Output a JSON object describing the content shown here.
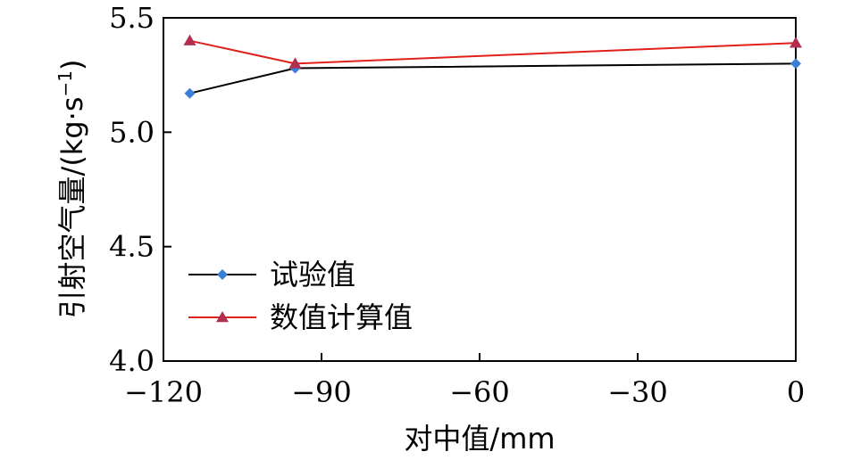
{
  "chart_data": {
    "type": "line",
    "xlabel": "对中值/mm",
    "ylabel_main": "引射空气量/(kg·s",
    "ylabel_sup": "−1",
    "ylabel_close": ")",
    "xlim": [
      -120,
      0
    ],
    "ylim": [
      4.0,
      5.5
    ],
    "xticks": [
      -120,
      -90,
      -60,
      -30,
      0
    ],
    "xtick_labels": [
      "−120",
      "−90",
      "−60",
      "−30",
      "0"
    ],
    "yticks": [
      4.0,
      4.5,
      5.0,
      5.5
    ],
    "ytick_labels": [
      "4.0",
      "4.5",
      "5.0",
      "5.5"
    ],
    "grid": false,
    "legend_position": "lower-left",
    "series": [
      {
        "name": "试验值",
        "color": "#000000",
        "marker_color": "#3a7fd5",
        "marker": "diamond",
        "x": [
          -115,
          -95,
          0
        ],
        "y": [
          5.17,
          5.28,
          5.3
        ]
      },
      {
        "name": "数值计算值",
        "color": "#e0201b",
        "marker_color": "#b03050",
        "marker": "triangle",
        "x": [
          -115,
          -95,
          0
        ],
        "y": [
          5.4,
          5.3,
          5.39
        ]
      }
    ]
  }
}
